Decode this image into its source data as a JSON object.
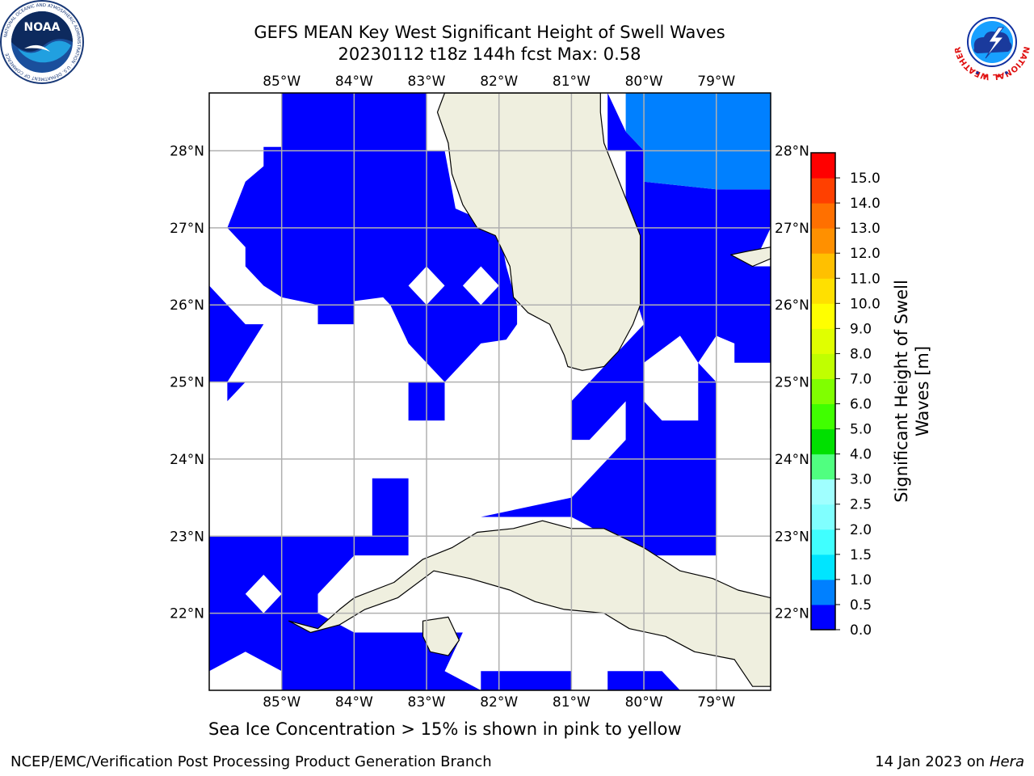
{
  "header": {
    "title_line1": "GEFS MEAN Key West Significant Height of Swell Waves",
    "title_line2": "20230112 t18z 144h fcst   Max: 0.58"
  },
  "logos": {
    "left": {
      "icon": "noaa-logo-icon",
      "text": "NOAA",
      "ring_text": "NATIONAL OCEANIC AND ATMOSPHERIC ADMINISTRATION · U.S. DEPARTMENT OF COMMERCE"
    },
    "right": {
      "icon": "nws-logo-icon",
      "ring_text": "NATIONAL WEATHER SERVICE"
    }
  },
  "subtitle": "Sea Ice Concentration > 15% is shown in pink to yellow",
  "footer": {
    "left": "NCEP/EMC/Verification Post Processing Product Generation Branch",
    "right_prefix": "14 Jan 2023 on ",
    "right_host": "Hera"
  },
  "chart_data": {
    "type": "heatmap",
    "title": "GEFS MEAN Key West Significant Height of Swell Waves",
    "run": "20230112 t18z 144h fcst",
    "max": "Max: 0.58",
    "lon_range": [
      -86.0,
      -78.25
    ],
    "lat_range": [
      21.0,
      28.75
    ],
    "lon_ticks": [
      {
        "value": -85,
        "label": "85°W"
      },
      {
        "value": -84,
        "label": "84°W"
      },
      {
        "value": -83,
        "label": "83°W"
      },
      {
        "value": -82,
        "label": "82°W"
      },
      {
        "value": -81,
        "label": "81°W"
      },
      {
        "value": -80,
        "label": "80°W"
      },
      {
        "value": -79,
        "label": "79°W"
      }
    ],
    "lat_ticks": [
      {
        "value": 28,
        "label": "28°N"
      },
      {
        "value": 27,
        "label": "27°N"
      },
      {
        "value": 26,
        "label": "26°N"
      },
      {
        "value": 25,
        "label": "25°N"
      },
      {
        "value": 24,
        "label": "24°N"
      },
      {
        "value": 23,
        "label": "23°N"
      },
      {
        "value": 22,
        "label": "22°N"
      }
    ],
    "grid": true,
    "colors": {
      "land": "#efefdf",
      "coast": "#000000",
      "grid": "#b0b0b0",
      "no_data": "#ffffff",
      "band_0_0_5": "#0000ff",
      "band_0_5_1_0": "#0080ff"
    },
    "regions_0_0_5": [
      [
        [
          -83.0,
          28.75
        ],
        [
          -85.0,
          28.75
        ],
        [
          -85.0,
          28.05
        ],
        [
          -85.25,
          28.05
        ],
        [
          -85.25,
          27.8
        ],
        [
          -85.5,
          27.6
        ],
        [
          -85.75,
          27.0
        ],
        [
          -85.5,
          26.75
        ],
        [
          -85.5,
          26.5
        ],
        [
          -85.25,
          26.25
        ],
        [
          -85.0,
          26.1
        ],
        [
          -84.5,
          26.0
        ],
        [
          -84.5,
          25.75
        ],
        [
          -84.0,
          25.75
        ],
        [
          -84.0,
          26.05
        ],
        [
          -83.6,
          26.1
        ],
        [
          -83.5,
          26.0
        ],
        [
          -83.25,
          25.5
        ],
        [
          -82.75,
          25.0
        ],
        [
          -82.25,
          25.5
        ],
        [
          -81.9,
          25.55
        ],
        [
          -81.75,
          25.75
        ],
        [
          -81.75,
          26.0
        ],
        [
          -81.9,
          26.5
        ],
        [
          -82.0,
          27.0
        ],
        [
          -82.6,
          27.25
        ],
        [
          -82.75,
          28.0
        ],
        [
          -83.0,
          28.0
        ]
      ],
      [
        [
          -86.0,
          26.25
        ],
        [
          -85.75,
          26.0
        ],
        [
          -85.5,
          25.75
        ],
        [
          -85.25,
          25.75
        ],
        [
          -85.75,
          25.0
        ],
        [
          -85.75,
          24.75
        ],
        [
          -85.5,
          25.0
        ],
        [
          -86.0,
          25.0
        ]
      ],
      [
        [
          -83.25,
          25.0
        ],
        [
          -82.75,
          25.0
        ],
        [
          -82.75,
          24.5
        ],
        [
          -83.25,
          24.5
        ]
      ],
      [
        [
          -81.0,
          28.75
        ],
        [
          -80.5,
          28.75
        ],
        [
          -80.5,
          28.0
        ],
        [
          -80.25,
          28.0
        ],
        [
          -80.25,
          26.5
        ],
        [
          -80.0,
          25.75
        ],
        [
          -80.5,
          25.25
        ],
        [
          -81.0,
          24.75
        ],
        [
          -81.0,
          24.25
        ],
        [
          -80.75,
          24.25
        ],
        [
          -80.25,
          24.75
        ],
        [
          -80.25,
          24.25
        ],
        [
          -81.0,
          23.5
        ],
        [
          -82.25,
          23.25
        ],
        [
          -81.0,
          23.25
        ],
        [
          -80.5,
          23.0
        ],
        [
          -80.0,
          22.75
        ],
        [
          -79.25,
          22.75
        ],
        [
          -79.0,
          22.75
        ],
        [
          -79.0,
          25.25
        ],
        [
          -78.75,
          25.25
        ],
        [
          -78.25,
          25.25
        ],
        [
          -78.25,
          26.5
        ],
        [
          -78.5,
          26.5
        ],
        [
          -78.25,
          27.0
        ],
        [
          -78.25,
          27.5
        ],
        [
          -79.0,
          27.5
        ],
        [
          -80.0,
          27.6
        ],
        [
          -80.0,
          28.0
        ],
        [
          -80.25,
          28.25
        ],
        [
          -80.5,
          28.75
        ]
      ],
      [
        [
          -81.0,
          25.75
        ],
        [
          -80.75,
          25.6
        ],
        [
          -80.75,
          25.25
        ],
        [
          -80.5,
          25.5
        ],
        [
          -80.5,
          26.0
        ],
        [
          -80.75,
          26.0
        ]
      ],
      [
        [
          -86.0,
          23.0
        ],
        [
          -83.75,
          23.0
        ],
        [
          -83.75,
          23.75
        ],
        [
          -83.25,
          23.75
        ],
        [
          -83.25,
          22.75
        ],
        [
          -84.0,
          22.75
        ],
        [
          -84.5,
          22.25
        ],
        [
          -84.5,
          22.0
        ],
        [
          -84.0,
          21.75
        ],
        [
          -84.0,
          21.0
        ],
        [
          -85.0,
          21.0
        ],
        [
          -85.0,
          21.25
        ],
        [
          -85.5,
          21.5
        ],
        [
          -86.0,
          21.25
        ]
      ],
      [
        [
          -84.0,
          21.75
        ],
        [
          -82.5,
          21.75
        ],
        [
          -82.75,
          21.25
        ],
        [
          -82.25,
          21.0
        ],
        [
          -84.0,
          21.0
        ]
      ],
      [
        [
          -82.25,
          21.25
        ],
        [
          -81.0,
          21.25
        ],
        [
          -81.0,
          21.0
        ],
        [
          -82.25,
          21.0
        ]
      ],
      [
        [
          -80.5,
          21.25
        ],
        [
          -79.75,
          21.25
        ],
        [
          -79.5,
          21.0
        ],
        [
          -80.5,
          21.0
        ]
      ]
    ],
    "regions_0_5_1_0": [
      [
        [
          -80.0,
          28.75
        ],
        [
          -78.25,
          28.75
        ],
        [
          -78.25,
          27.5
        ],
        [
          -79.0,
          27.5
        ],
        [
          -80.0,
          27.6
        ],
        [
          -80.0,
          28.0
        ],
        [
          -80.25,
          28.25
        ],
        [
          -80.25,
          28.75
        ]
      ]
    ],
    "holes_in_blue": [
      [
        [
          -83.25,
          26.25
        ],
        [
          -83.0,
          26.0
        ],
        [
          -82.75,
          26.25
        ],
        [
          -83.0,
          26.5
        ]
      ],
      [
        [
          -82.5,
          26.25
        ],
        [
          -82.25,
          26.0
        ],
        [
          -82.0,
          26.25
        ],
        [
          -82.25,
          26.5
        ]
      ],
      [
        [
          -80.0,
          25.25
        ],
        [
          -79.5,
          25.6
        ],
        [
          -79.25,
          25.25
        ],
        [
          -79.25,
          24.5
        ],
        [
          -79.75,
          24.5
        ],
        [
          -80.0,
          24.75
        ]
      ],
      [
        [
          -79.0,
          25.6
        ],
        [
          -78.75,
          25.5
        ],
        [
          -78.75,
          25.25
        ],
        [
          -79.0,
          25.0
        ],
        [
          -79.25,
          25.25
        ]
      ],
      [
        [
          -85.5,
          22.25
        ],
        [
          -85.25,
          22.0
        ],
        [
          -85.0,
          22.25
        ],
        [
          -85.25,
          22.5
        ]
      ]
    ],
    "land": {
      "florida": [
        [
          -82.75,
          28.75
        ],
        [
          -80.6,
          28.75
        ],
        [
          -80.6,
          28.5
        ],
        [
          -80.55,
          28.1
        ],
        [
          -80.3,
          27.5
        ],
        [
          -80.05,
          26.9
        ],
        [
          -80.05,
          26.0
        ],
        [
          -80.15,
          25.75
        ],
        [
          -80.35,
          25.4
        ],
        [
          -80.55,
          25.2
        ],
        [
          -80.85,
          25.15
        ],
        [
          -81.05,
          25.2
        ],
        [
          -81.1,
          25.35
        ],
        [
          -81.3,
          25.75
        ],
        [
          -81.6,
          25.9
        ],
        [
          -81.8,
          26.1
        ],
        [
          -81.85,
          26.5
        ],
        [
          -82.05,
          26.9
        ],
        [
          -82.3,
          27.0
        ],
        [
          -82.5,
          27.3
        ],
        [
          -82.65,
          27.7
        ],
        [
          -82.7,
          28.1
        ],
        [
          -82.85,
          28.5
        ],
        [
          -82.75,
          28.75
        ]
      ],
      "cuba": [
        [
          -84.9,
          21.9
        ],
        [
          -84.5,
          21.8
        ],
        [
          -84.2,
          22.05
        ],
        [
          -84.0,
          22.2
        ],
        [
          -83.45,
          22.4
        ],
        [
          -83.05,
          22.7
        ],
        [
          -82.65,
          22.85
        ],
        [
          -82.3,
          23.05
        ],
        [
          -81.8,
          23.1
        ],
        [
          -81.4,
          23.2
        ],
        [
          -81.0,
          23.1
        ],
        [
          -80.55,
          23.1
        ],
        [
          -80.0,
          22.85
        ],
        [
          -79.5,
          22.55
        ],
        [
          -79.05,
          22.45
        ],
        [
          -78.7,
          22.3
        ],
        [
          -78.25,
          22.2
        ],
        [
          -78.25,
          21.05
        ],
        [
          -78.5,
          21.05
        ],
        [
          -78.75,
          21.4
        ],
        [
          -79.3,
          21.5
        ],
        [
          -79.7,
          21.7
        ],
        [
          -80.2,
          21.8
        ],
        [
          -80.55,
          22.0
        ],
        [
          -81.1,
          22.05
        ],
        [
          -81.5,
          22.15
        ],
        [
          -81.85,
          22.3
        ],
        [
          -82.4,
          22.45
        ],
        [
          -82.9,
          22.55
        ],
        [
          -83.4,
          22.2
        ],
        [
          -83.85,
          22.05
        ],
        [
          -84.2,
          21.85
        ],
        [
          -84.6,
          21.75
        ],
        [
          -84.9,
          21.9
        ]
      ],
      "isla_juventud": [
        [
          -83.05,
          21.9
        ],
        [
          -82.7,
          21.95
        ],
        [
          -82.55,
          21.65
        ],
        [
          -82.7,
          21.45
        ],
        [
          -82.95,
          21.5
        ],
        [
          -83.05,
          21.7
        ]
      ],
      "bahamas_gb": [
        [
          -78.8,
          26.65
        ],
        [
          -78.5,
          26.5
        ],
        [
          -78.25,
          26.6
        ],
        [
          -78.25,
          26.75
        ],
        [
          -78.55,
          26.7
        ]
      ],
      "bahamas_andros": [
        [
          -78.25,
          24.85
        ],
        [
          -78.1,
          24.5
        ],
        [
          -78.25,
          24.4
        ]
      ]
    },
    "colorbar": {
      "label": "Significant Height of Swell Waves [m]",
      "label_line1": "Significant Height of Swell",
      "label_line2": "Waves [m]",
      "ticks": [
        "0.0",
        "0.5",
        "1.0",
        "1.5",
        "2.0",
        "2.5",
        "3.0",
        "4.0",
        "5.0",
        "6.0",
        "7.0",
        "8.0",
        "9.0",
        "10.0",
        "11.0",
        "12.0",
        "13.0",
        "14.0",
        "15.0"
      ],
      "colors": [
        "#0000ff",
        "#0080ff",
        "#00e5ff",
        "#40ffff",
        "#80ffff",
        "#a0ffff",
        "#50ff80",
        "#00e000",
        "#40ff00",
        "#80ff00",
        "#c0ff00",
        "#e0ff00",
        "#ffff00",
        "#ffe000",
        "#ffc000",
        "#ff9000",
        "#ff7000",
        "#ff4000",
        "#ff0000"
      ]
    }
  }
}
